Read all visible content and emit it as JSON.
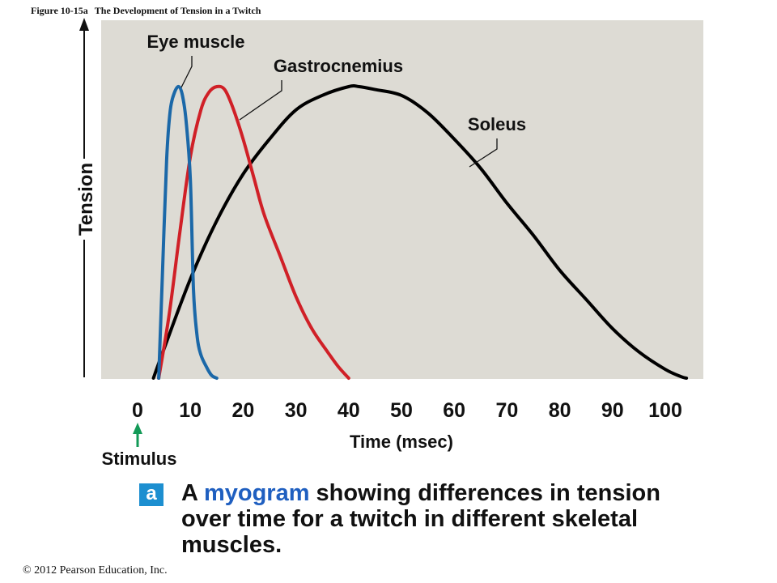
{
  "figure": {
    "label": "Figure 10-15a",
    "title": "The Development of Tension in a Twitch"
  },
  "colors": {
    "plot_bg": "#dddbd4",
    "eye": "#1b68a8",
    "gastrocnemius": "#d02027",
    "soleus": "#000000",
    "stimulus_arrow": "#139a57",
    "badge": "#1d8fd0",
    "keyword": "#1f5fc0"
  },
  "chart_data": {
    "type": "line",
    "ylabel": "Tension",
    "xlabel": "Time (msec)",
    "xlim": [
      0,
      104
    ],
    "ylim": [
      0,
      1
    ],
    "xticks": [
      0,
      10,
      20,
      30,
      40,
      50,
      60,
      70,
      80,
      90,
      100
    ],
    "stimulus": {
      "label": "Stimulus",
      "x": 0
    },
    "series": [
      {
        "name": "Eye muscle",
        "color": "#1b68a8",
        "x": [
          4,
          4.7,
          5.5,
          6.2,
          7,
          7.8,
          8.5,
          9.2,
          10,
          10.6,
          11.3,
          12,
          13,
          14,
          15
        ],
        "y": [
          0.0,
          0.35,
          0.75,
          0.92,
          0.98,
          1.0,
          0.97,
          0.88,
          0.68,
          0.3,
          0.14,
          0.08,
          0.04,
          0.01,
          0.0
        ]
      },
      {
        "name": "Gastrocnemius",
        "color": "#d02027",
        "x": [
          4,
          6,
          8,
          10,
          12,
          13.5,
          15,
          16.5,
          18,
          20,
          22,
          24,
          27,
          30,
          33,
          36,
          38,
          40
        ],
        "y": [
          0.0,
          0.22,
          0.5,
          0.76,
          0.92,
          0.98,
          1.0,
          0.99,
          0.93,
          0.82,
          0.69,
          0.56,
          0.42,
          0.28,
          0.17,
          0.09,
          0.04,
          0.0
        ]
      },
      {
        "name": "Soleus",
        "color": "#000000",
        "x": [
          3,
          5,
          10,
          15,
          20,
          25,
          30,
          35,
          40,
          42,
          45,
          50,
          55,
          60,
          65,
          70,
          75,
          80,
          85,
          90,
          95,
          100,
          103,
          104
        ],
        "y": [
          0.0,
          0.1,
          0.34,
          0.54,
          0.7,
          0.82,
          0.92,
          0.97,
          1.0,
          1.0,
          0.99,
          0.97,
          0.91,
          0.82,
          0.72,
          0.6,
          0.49,
          0.37,
          0.27,
          0.17,
          0.09,
          0.03,
          0.005,
          0.0
        ]
      }
    ],
    "annotations": [
      {
        "text": "Eye muscle",
        "series": "Eye muscle"
      },
      {
        "text": "Gastrocnemius",
        "series": "Gastrocnemius"
      },
      {
        "text": "Soleus",
        "series": "Soleus"
      }
    ]
  },
  "caption": {
    "badge": "a",
    "pre": "A ",
    "keyword": "myogram",
    "post": " showing differences in tension over time for a twitch in different skeletal muscles."
  },
  "copyright": "© 2012 Pearson Education, Inc."
}
